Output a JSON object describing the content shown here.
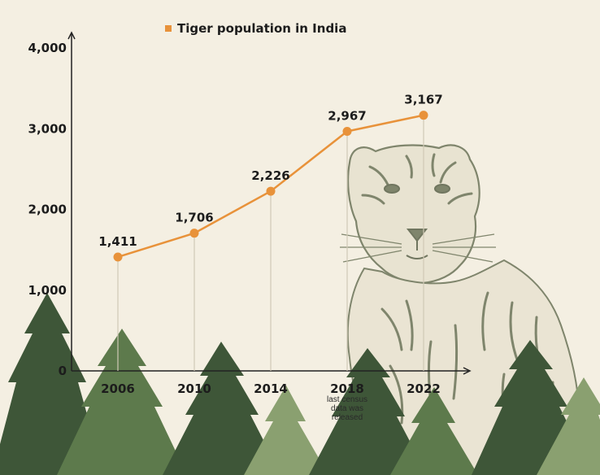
{
  "chart_data": {
    "type": "line",
    "title": "",
    "xlabel": "",
    "ylabel": "",
    "categories": [
      "2006",
      "2010",
      "2014",
      "2018",
      "2022"
    ],
    "series": [
      {
        "name": "Tiger population in India",
        "values": [
          1411,
          1706,
          2226,
          2967,
          3167
        ],
        "labels": [
          "1,411",
          "1,706",
          "2,226",
          "2,967",
          "3,167"
        ]
      }
    ],
    "ylim": [
      0,
      4000
    ],
    "yticks": [
      0,
      1000,
      2000,
      3000,
      4000
    ],
    "ytick_labels": [
      "0",
      "1,000",
      "2,000",
      "3,000",
      "4,000"
    ],
    "annotations": [
      {
        "category": "2018",
        "text": [
          "last census",
          "data was",
          "released"
        ]
      }
    ],
    "legend_position": "top",
    "grid": false,
    "colors": {
      "line": "#e8923a",
      "marker": "#e8923a",
      "background": "#f4efe2",
      "axis": "#222222",
      "dropline": "#d0c9b6",
      "tree_dark": "#3e5638",
      "tree_mid": "#5d7a4c",
      "tree_light": "#8aa070",
      "tiger": "#6b7358"
    }
  }
}
